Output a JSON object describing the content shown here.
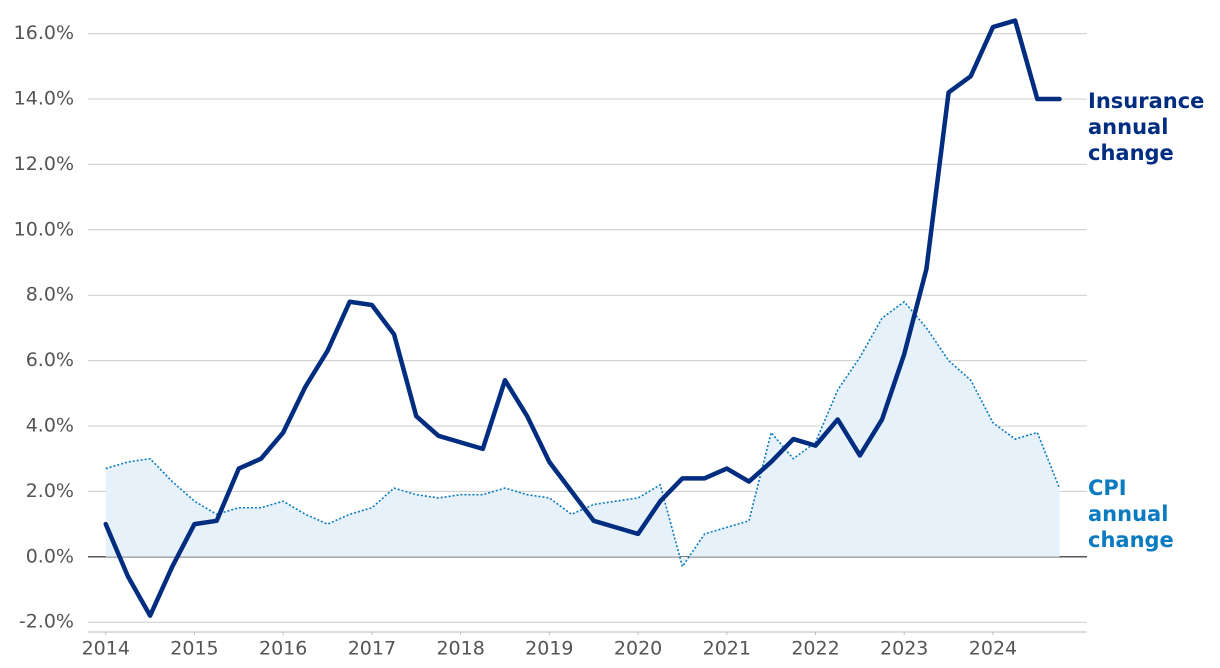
{
  "chart_data": {
    "type": "line",
    "x": [
      2014,
      2014.25,
      2014.5,
      2014.75,
      2015,
      2015.25,
      2015.5,
      2015.75,
      2016,
      2016.25,
      2016.5,
      2016.75,
      2017,
      2017.25,
      2017.5,
      2017.75,
      2018,
      2018.25,
      2018.5,
      2018.75,
      2019,
      2019.25,
      2019.5,
      2019.75,
      2020,
      2020.25,
      2020.5,
      2020.75,
      2021,
      2021.25,
      2021.5,
      2021.75,
      2022,
      2022.25,
      2022.5,
      2022.75,
      2023,
      2023.25,
      2023.5,
      2023.75,
      2024,
      2024.25,
      2024.5,
      2024.75
    ],
    "series": [
      {
        "name": "Insurance annual change",
        "color": "#002d80",
        "style": "solid",
        "values": [
          1.0,
          -0.6,
          -1.8,
          -0.3,
          1.0,
          1.1,
          2.7,
          3.0,
          3.8,
          5.2,
          6.3,
          7.8,
          7.7,
          6.8,
          4.3,
          3.7,
          3.5,
          3.3,
          5.4,
          4.3,
          2.9,
          2.0,
          1.1,
          0.9,
          0.7,
          1.7,
          2.4,
          2.4,
          2.7,
          2.3,
          2.9,
          3.6,
          3.4,
          4.2,
          3.1,
          4.2,
          6.2,
          8.8,
          14.2,
          14.7,
          16.2,
          16.4,
          14.0,
          14.0
        ]
      },
      {
        "name": "CPI annual change",
        "color": "#0a7bc1",
        "style": "dotted",
        "fill": "#e6f1fa",
        "values": [
          2.7,
          2.9,
          3.0,
          2.3,
          1.7,
          1.3,
          1.5,
          1.5,
          1.7,
          1.3,
          1.0,
          1.3,
          1.5,
          2.1,
          1.9,
          1.8,
          1.9,
          1.9,
          2.1,
          1.9,
          1.8,
          1.3,
          1.6,
          1.7,
          1.8,
          2.2,
          -0.3,
          0.7,
          0.9,
          1.1,
          3.8,
          3.0,
          3.5,
          5.1,
          6.1,
          7.3,
          7.8,
          7.0,
          6.0,
          5.4,
          4.1,
          3.6,
          3.8,
          2.1
        ]
      }
    ],
    "xlim": [
      2013.8,
      2025.06
    ],
    "xticks": [
      2014,
      2015,
      2016,
      2017,
      2018,
      2019,
      2020,
      2021,
      2022,
      2023,
      2024
    ],
    "ylim": [
      -2.3,
      16.6
    ],
    "yticks": [
      {
        "value": -2,
        "label": "-2.0%"
      },
      {
        "value": 0,
        "label": "0.0%"
      },
      {
        "value": 2,
        "label": "2.0%"
      },
      {
        "value": 4,
        "label": "4.0%"
      },
      {
        "value": 6,
        "label": "6.0%"
      },
      {
        "value": 8,
        "label": "8.0%"
      },
      {
        "value": 10,
        "label": "10.0%"
      },
      {
        "value": 12,
        "label": "12.0%"
      },
      {
        "value": 14,
        "label": "14.0%"
      },
      {
        "value": 16,
        "label": "16.0%"
      }
    ],
    "grid": true
  }
}
